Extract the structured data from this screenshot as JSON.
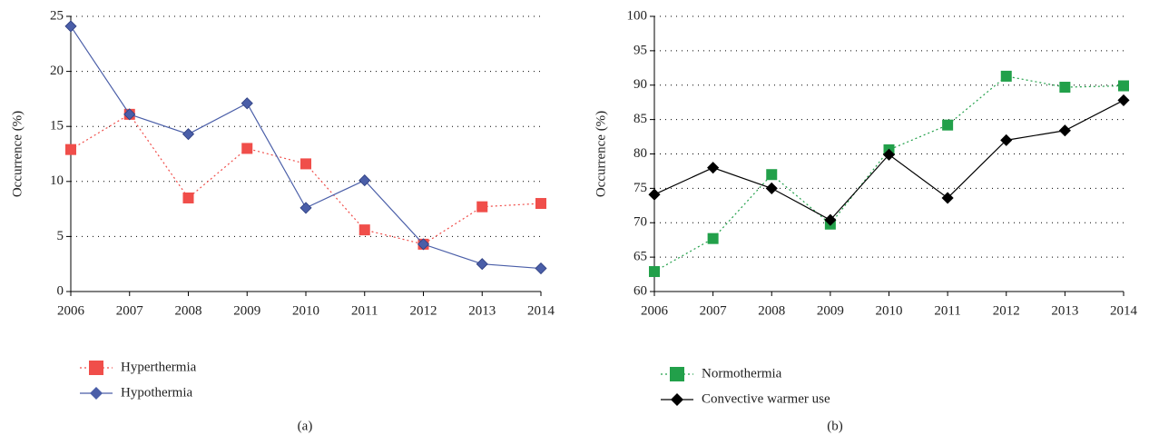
{
  "chart_data": [
    {
      "type": "line",
      "caption": "(a)",
      "y_label": "Occurrence (%)",
      "x": [
        2006,
        2007,
        2008,
        2009,
        2010,
        2011,
        2012,
        2013,
        2014
      ],
      "xlim": [
        2006,
        2014
      ],
      "xticks": [
        2006,
        2007,
        2008,
        2009,
        2010,
        2011,
        2012,
        2013,
        2014
      ],
      "ylim": [
        0,
        25
      ],
      "yticks": [
        0,
        5,
        10,
        15,
        20,
        25
      ],
      "grid": true,
      "series": [
        {
          "name": "Hyperthermia",
          "color": "#f04e4a",
          "marker": "square",
          "line_style": "dotted",
          "values": [
            12.9,
            16.1,
            8.5,
            13.0,
            11.6,
            5.6,
            4.3,
            7.7,
            8.0
          ]
        },
        {
          "name": "Hypothermia",
          "color": "#4a5ea8",
          "marker": "diamond",
          "line_style": "solid",
          "values": [
            24.1,
            16.1,
            14.3,
            17.1,
            7.6,
            10.1,
            4.3,
            2.5,
            2.1
          ]
        }
      ]
    },
    {
      "type": "line",
      "caption": "(b)",
      "y_label": "Occurrence (%)",
      "x": [
        2006,
        2007,
        2008,
        2009,
        2010,
        2011,
        2012,
        2013,
        2014
      ],
      "xlim": [
        2006,
        2014
      ],
      "xticks": [
        2006,
        2007,
        2008,
        2009,
        2010,
        2011,
        2012,
        2013,
        2014
      ],
      "ylim": [
        60,
        100
      ],
      "yticks": [
        60,
        65,
        70,
        75,
        80,
        85,
        90,
        95,
        100
      ],
      "grid": true,
      "series": [
        {
          "name": "Normothermia",
          "color": "#22a04a",
          "marker": "square",
          "line_style": "dotted",
          "values": [
            62.9,
            67.7,
            77.0,
            69.8,
            80.6,
            84.2,
            91.3,
            89.7,
            89.9
          ]
        },
        {
          "name": "Convective warmer use",
          "color": "#000000",
          "marker": "diamond",
          "line_style": "solid",
          "values": [
            74.1,
            78.0,
            75.0,
            70.4,
            79.9,
            73.6,
            82.0,
            83.4,
            87.8
          ]
        }
      ]
    }
  ]
}
